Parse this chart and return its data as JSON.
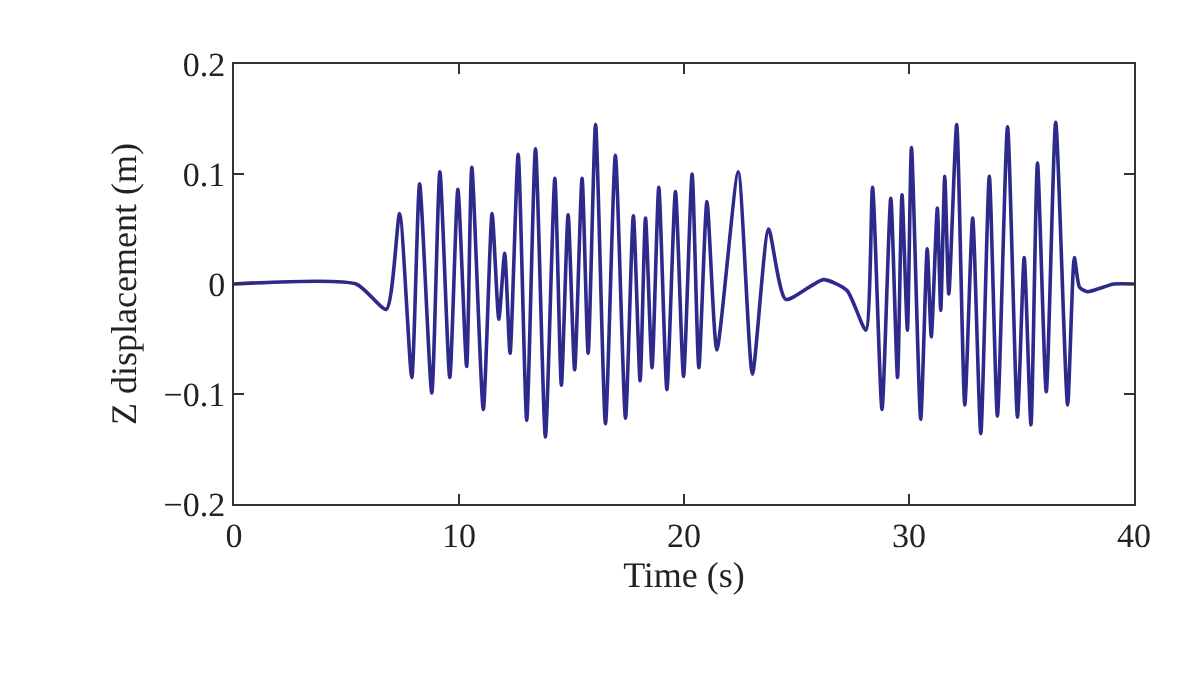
{
  "chart_data": {
    "type": "line",
    "xlabel": "Time (s)",
    "ylabel": "Z displacement (m)",
    "xlim": [
      0,
      40
    ],
    "xticks": [
      0,
      10,
      20,
      30,
      40
    ],
    "ylim": [
      -0.2,
      0.2
    ],
    "yticks": [
      {
        "value": -0.2,
        "label": "−0.2"
      },
      {
        "value": -0.1,
        "label": "−0.1"
      },
      0,
      0.1,
      0.2
    ],
    "legend": false,
    "marker": "none",
    "line_style": "solid",
    "series": [
      {
        "color": "#2e2a8c",
        "x": [
          0,
          5.43,
          6.77,
          7.36,
          7.9,
          8.25,
          8.79,
          9.15,
          9.59,
          9.95,
          10.34,
          10.57,
          11.08,
          11.47,
          11.77,
          12.03,
          12.27,
          12.63,
          13.01,
          13.4,
          13.84,
          14.26,
          14.55,
          14.85,
          15.14,
          15.47,
          15.74,
          16.07,
          16.51,
          16.95,
          17.4,
          17.75,
          18.05,
          18.29,
          18.58,
          18.88,
          19.24,
          19.62,
          19.98,
          20.36,
          20.66,
          21.02,
          21.46,
          22.41,
          23.04,
          23.76,
          24.52,
          26.2,
          27.25,
          28.08,
          28.38,
          28.8,
          29.19,
          29.49,
          29.69,
          29.93,
          30.11,
          30.52,
          30.81,
          30.99,
          31.26,
          31.41,
          31.59,
          31.77,
          32.12,
          32.48,
          32.83,
          33.19,
          33.57,
          33.93,
          34.38,
          34.82,
          35.12,
          35.42,
          35.71,
          36.1,
          36.52,
          37.05,
          37.35,
          37.58,
          37.94,
          39.1,
          40
        ],
        "values": [
          0,
          0,
          -0.023,
          0.064,
          -0.085,
          0.091,
          -0.099,
          0.102,
          -0.085,
          0.086,
          -0.075,
          0.106,
          -0.114,
          0.064,
          -0.032,
          0.028,
          -0.063,
          0.118,
          -0.124,
          0.123,
          -0.139,
          0.096,
          -0.092,
          0.063,
          -0.078,
          0.096,
          -0.063,
          0.145,
          -0.127,
          0.117,
          -0.122,
          0.062,
          -0.088,
          0.06,
          -0.076,
          0.088,
          -0.096,
          0.084,
          -0.084,
          0.1,
          -0.076,
          0.075,
          -0.06,
          0.102,
          -0.082,
          0.05,
          -0.014,
          0.004,
          -0.006,
          -0.042,
          0.088,
          -0.114,
          0.078,
          -0.085,
          0.081,
          -0.042,
          0.124,
          -0.123,
          0.032,
          -0.048,
          0.069,
          -0.024,
          0.098,
          -0.009,
          0.145,
          -0.11,
          0.06,
          -0.136,
          0.098,
          -0.12,
          0.143,
          -0.121,
          0.024,
          -0.128,
          0.11,
          -0.098,
          0.147,
          -0.11,
          0.024,
          -0.003,
          -0.007,
          0,
          0
        ]
      }
    ]
  }
}
